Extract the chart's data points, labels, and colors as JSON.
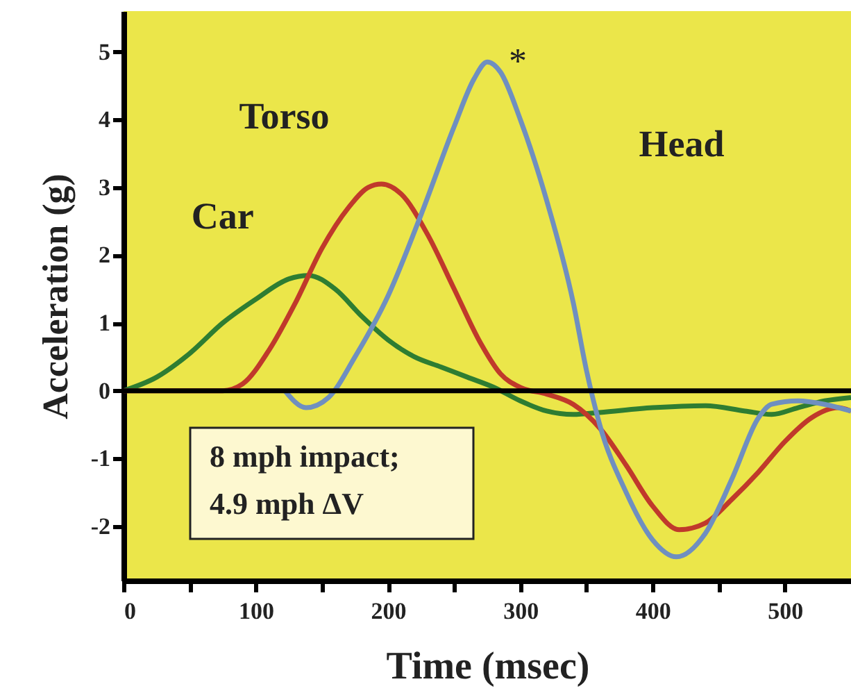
{
  "chart_data": {
    "type": "line",
    "xlabel": "Time (msec)",
    "ylabel": "Acceleration (g)",
    "xlim": [
      0,
      550
    ],
    "ylim": [
      -2.8,
      5.6
    ],
    "xticks": [
      0,
      {
        "value": 50,
        "label": null
      },
      100,
      {
        "value": 150,
        "label": null
      },
      200,
      {
        "value": 250,
        "label": null
      },
      300,
      {
        "value": 350,
        "label": null
      },
      400,
      {
        "value": 450,
        "label": null
      },
      500
    ],
    "yticks": [
      -2,
      -1,
      0,
      1,
      2,
      3,
      4,
      5
    ],
    "grid": false,
    "legend": false,
    "marker": "none",
    "line_style": "solid",
    "ref_lines": [
      {
        "axis": "y",
        "value": 0,
        "color": "#000000"
      }
    ],
    "annotations": [
      {
        "text": "*",
        "x": 275,
        "y": 4.85
      },
      "8 mph impact;\n4.9 mph ΔV"
    ],
    "series": [
      {
        "name": "Car",
        "color": "#2e7d32",
        "x": [
          0,
          25,
          50,
          75,
          100,
          125,
          140,
          160,
          180,
          200,
          220,
          240,
          260,
          280,
          300,
          320,
          340,
          360,
          400,
          440,
          470,
          490,
          510,
          530,
          550
        ],
        "values": [
          0,
          0.2,
          0.55,
          1.0,
          1.35,
          1.65,
          1.7,
          1.5,
          1.1,
          0.75,
          0.5,
          0.35,
          0.2,
          0.05,
          -0.15,
          -0.3,
          -0.35,
          -0.32,
          -0.25,
          -0.22,
          -0.3,
          -0.35,
          -0.25,
          -0.15,
          -0.1
        ]
      },
      {
        "name": "Torso",
        "color": "#c0392b",
        "x": [
          0,
          75,
          90,
          110,
          130,
          150,
          170,
          185,
          195,
          210,
          230,
          250,
          270,
          285,
          300,
          320,
          340,
          360,
          380,
          400,
          420,
          440,
          460,
          480,
          500,
          520,
          540,
          550
        ],
        "values": [
          0,
          0,
          0.1,
          0.6,
          1.3,
          2.1,
          2.7,
          3.0,
          3.05,
          2.9,
          2.3,
          1.5,
          0.7,
          0.25,
          0.05,
          -0.05,
          -0.2,
          -0.55,
          -1.1,
          -1.7,
          -2.05,
          -1.95,
          -1.6,
          -1.2,
          -0.75,
          -0.4,
          -0.25,
          -0.3
        ]
      },
      {
        "name": "Head",
        "color": "#6f8fc0",
        "x": [
          122,
          138,
          155,
          175,
          200,
          225,
          250,
          265,
          275,
          285,
          300,
          320,
          340,
          350,
          360,
          380,
          400,
          418,
          440,
          460,
          480,
          490,
          510,
          530,
          550
        ],
        "values": [
          0,
          -0.25,
          -0.1,
          0.5,
          1.4,
          2.6,
          3.9,
          4.6,
          4.85,
          4.7,
          4.0,
          2.8,
          1.3,
          0.3,
          -0.5,
          -1.5,
          -2.2,
          -2.45,
          -2.1,
          -1.3,
          -0.4,
          -0.2,
          -0.15,
          -0.2,
          -0.3
        ]
      }
    ]
  }
}
